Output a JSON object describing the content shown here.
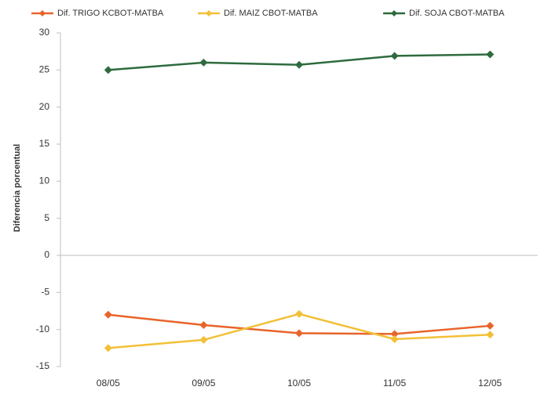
{
  "chart_data": {
    "type": "line",
    "y_label": "Diferencia porcentual",
    "categories": [
      "08/05",
      "09/05",
      "10/05",
      "11/05",
      "12/05"
    ],
    "series": [
      {
        "name": "Dif. TRIGO KCBOT-MATBA",
        "color": "#e8642a",
        "values": [
          -8,
          -9.4,
          -10.5,
          -10.6,
          -9.5
        ]
      },
      {
        "name": "Dif. MAIZ CBOT-MATBA",
        "color": "#f2c037",
        "values": [
          -12.5,
          -11.4,
          -7.9,
          -11.3,
          -10.7
        ]
      },
      {
        "name": "Dif. SOJA CBOT-MATBA",
        "color": "#2e6b3e",
        "values": [
          25,
          26,
          25.7,
          26.9,
          27.1
        ]
      }
    ],
    "ylim": [
      -15,
      30
    ],
    "yticks": [
      -15,
      -10,
      -5,
      0,
      5,
      10,
      15,
      20,
      25,
      30
    ],
    "grid": false
  }
}
